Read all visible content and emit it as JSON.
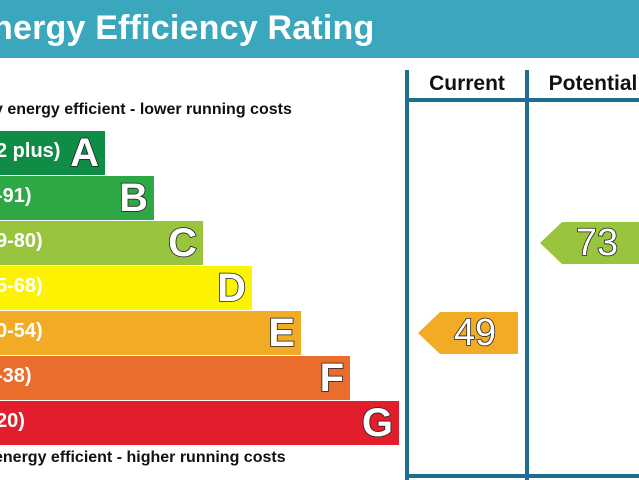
{
  "header": {
    "title": "nergy Efficiency Rating"
  },
  "captions": {
    "top": "y energy efficient - lower running costs",
    "bottom": "energy efficient - higher running costs"
  },
  "columns": {
    "current": "Current",
    "potential": "Potential"
  },
  "chart_data": {
    "type": "bar",
    "title": "nergy Efficiency Rating",
    "categories": [
      "A",
      "B",
      "C",
      "D",
      "E",
      "F",
      "G"
    ],
    "bands": [
      {
        "letter": "A",
        "range": "2 plus)",
        "color": "#0f8c45"
      },
      {
        "letter": "B",
        "range": "-91)",
        "color": "#2ea845"
      },
      {
        "letter": "C",
        "range": "9-80)",
        "color": "#99c43e"
      },
      {
        "letter": "D",
        "range": "5-68)",
        "color": "#fdf200"
      },
      {
        "letter": "E",
        "range": "0-54)",
        "color": "#f2ab25"
      },
      {
        "letter": "F",
        "range": "-38)",
        "color": "#ea6d2b"
      },
      {
        "letter": "G",
        "range": "20)",
        "color": "#e21d2c"
      }
    ],
    "series": [
      {
        "name": "Current",
        "value": 49,
        "band": "E",
        "color": "#f2ab25"
      },
      {
        "name": "Potential",
        "value": 73,
        "band": "C",
        "color": "#99c43e"
      }
    ]
  }
}
